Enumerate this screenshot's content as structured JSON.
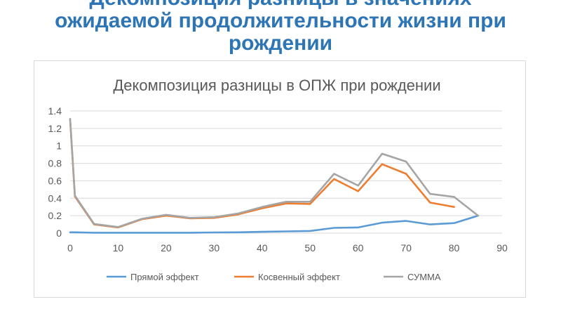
{
  "slide": {
    "title_lines": [
      "Декомпозиция разницы в значениях",
      "ожидаемой продолжительности жизни при",
      "рождении"
    ]
  },
  "chart_data": {
    "type": "line",
    "title": "Декомпозиция разницы в ОПЖ при рождении",
    "xlabel": "",
    "ylabel": "",
    "xlim": [
      0,
      90
    ],
    "ylim": [
      0,
      1.4
    ],
    "x_ticks": [
      "0",
      "10",
      "20",
      "30",
      "40",
      "50",
      "60",
      "70",
      "80",
      "90"
    ],
    "y_ticks": [
      "0",
      "0.2",
      "0.4",
      "0.6",
      "0.8",
      "1",
      "1.2",
      "1.4"
    ],
    "grid": "horizontal",
    "legend_position": "bottom",
    "colors": {
      "direct": "#5b9bd5",
      "indirect": "#ed7d31",
      "sum": "#a5a5a5"
    },
    "series": [
      {
        "name": "Прямой эффект",
        "color": "#5b9bd5",
        "points": [
          [
            0,
            0.01
          ],
          [
            1,
            0.01
          ],
          [
            5,
            0.005
          ],
          [
            10,
            0.005
          ],
          [
            15,
            0.005
          ],
          [
            20,
            0.005
          ],
          [
            25,
            0.005
          ],
          [
            30,
            0.008
          ],
          [
            35,
            0.01
          ],
          [
            40,
            0.015
          ],
          [
            45,
            0.02
          ],
          [
            50,
            0.025
          ],
          [
            55,
            0.06
          ],
          [
            60,
            0.065
          ],
          [
            65,
            0.12
          ],
          [
            70,
            0.14
          ],
          [
            75,
            0.1
          ],
          [
            80,
            0.115
          ],
          [
            85,
            0.2
          ]
        ]
      },
      {
        "name": "Косвенный эффект",
        "color": "#ed7d31",
        "points": [
          [
            0,
            1.3
          ],
          [
            1,
            0.42
          ],
          [
            5,
            0.1
          ],
          [
            10,
            0.065
          ],
          [
            15,
            0.16
          ],
          [
            20,
            0.2
          ],
          [
            25,
            0.17
          ],
          [
            30,
            0.175
          ],
          [
            35,
            0.215
          ],
          [
            40,
            0.285
          ],
          [
            45,
            0.34
          ],
          [
            50,
            0.335
          ],
          [
            55,
            0.62
          ],
          [
            60,
            0.48
          ],
          [
            65,
            0.79
          ],
          [
            70,
            0.68
          ],
          [
            75,
            0.35
          ],
          [
            80,
            0.3
          ]
        ]
      },
      {
        "name": "СУММА",
        "color": "#a5a5a5",
        "points": [
          [
            0,
            1.31
          ],
          [
            1,
            0.43
          ],
          [
            5,
            0.105
          ],
          [
            10,
            0.07
          ],
          [
            15,
            0.165
          ],
          [
            20,
            0.21
          ],
          [
            25,
            0.175
          ],
          [
            30,
            0.183
          ],
          [
            35,
            0.225
          ],
          [
            40,
            0.3
          ],
          [
            45,
            0.36
          ],
          [
            50,
            0.36
          ],
          [
            55,
            0.68
          ],
          [
            60,
            0.545
          ],
          [
            65,
            0.91
          ],
          [
            70,
            0.82
          ],
          [
            75,
            0.45
          ],
          [
            80,
            0.415
          ],
          [
            85,
            0.2
          ]
        ]
      }
    ]
  }
}
